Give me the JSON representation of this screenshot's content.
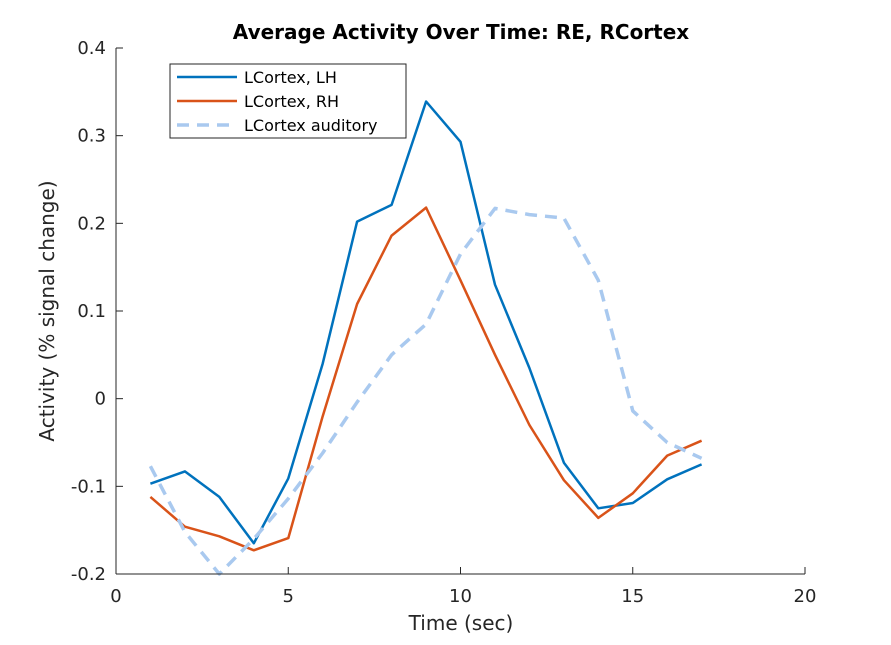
{
  "chart_data": {
    "type": "line",
    "title": "Average Activity Over Time: RE, RCortex",
    "xlabel": "Time (sec)",
    "ylabel": "Activity (% signal change)",
    "xlim": [
      0,
      20
    ],
    "ylim": [
      -0.2,
      0.4
    ],
    "xticks": [
      0,
      5,
      10,
      15,
      20
    ],
    "xtick_labels": [
      "0",
      "5",
      "10",
      "15",
      "20"
    ],
    "yticks": [
      -0.2,
      -0.1,
      0,
      0.1,
      0.2,
      0.3,
      0.4
    ],
    "ytick_labels": [
      "-0.2",
      "-0.1",
      "0",
      "0.1",
      "0.2",
      "0.3",
      "0.4"
    ],
    "grid": false,
    "legend_position": "top-left",
    "x": [
      1,
      2,
      3,
      4,
      5,
      6,
      7,
      8,
      9,
      10,
      11,
      12,
      13,
      14,
      15,
      16,
      17
    ],
    "series": [
      {
        "name": "LCortex, LH",
        "color": "#0072BD",
        "style": "solid",
        "values": [
          -0.097,
          -0.083,
          -0.112,
          -0.165,
          -0.091,
          0.04,
          0.202,
          0.221,
          0.339,
          0.293,
          0.13,
          0.035,
          -0.073,
          -0.125,
          -0.119,
          -0.092,
          -0.075
        ]
      },
      {
        "name": "LCortex, RH",
        "color": "#D95319",
        "style": "solid",
        "values": [
          -0.112,
          -0.146,
          -0.157,
          -0.173,
          -0.159,
          -0.02,
          0.108,
          0.186,
          0.218,
          0.135,
          0.05,
          -0.03,
          -0.093,
          -0.136,
          -0.108,
          -0.065,
          -0.048
        ]
      },
      {
        "name": "LCortex auditory",
        "color": "#A9C9EF",
        "style": "dashed",
        "values": [
          -0.077,
          -0.152,
          -0.2,
          -0.16,
          -0.114,
          -0.062,
          -0.004,
          0.05,
          0.085,
          0.165,
          0.217,
          0.21,
          0.206,
          0.135,
          -0.014,
          -0.05,
          -0.068
        ]
      }
    ]
  }
}
